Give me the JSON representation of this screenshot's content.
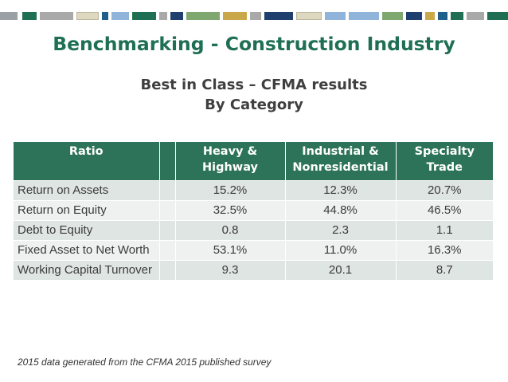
{
  "title": "Benchmarking - Construction Industry",
  "subtitle": {
    "line1": "Best in Class – CFMA results",
    "line2": "By Category"
  },
  "table": {
    "headers": {
      "ratio": "Ratio",
      "heavy_highway": "Heavy & Highway",
      "industrial_nonresidential": "Industrial & Nonresidential",
      "specialty_trade": "Specialty Trade"
    },
    "rows": [
      {
        "ratio": "Return on Assets",
        "heavy_highway": "15.2%",
        "industrial_nonresidential": "12.3%",
        "specialty_trade": "20.7%"
      },
      {
        "ratio": "Return on Equity",
        "heavy_highway": "32.5%",
        "industrial_nonresidential": "44.8%",
        "specialty_trade": "46.5%"
      },
      {
        "ratio": "Debt to Equity",
        "heavy_highway": "0.8",
        "industrial_nonresidential": "2.3",
        "specialty_trade": "1.1"
      },
      {
        "ratio": "Fixed Asset to Net Worth",
        "heavy_highway": "53.1%",
        "industrial_nonresidential": "11.0%",
        "specialty_trade": "16.3%"
      },
      {
        "ratio": "Working Capital Turnover",
        "heavy_highway": "9.3",
        "industrial_nonresidential": "20.1",
        "specialty_trade": "8.7"
      }
    ]
  },
  "footnote": "2015 data generated from the CFMA 2015 published survey",
  "colors": {
    "title_green": "#1f6f54",
    "header_green": "#2d7359",
    "row_shade_a": "#dfe5e2",
    "row_shade_b": "#eef1ef"
  }
}
